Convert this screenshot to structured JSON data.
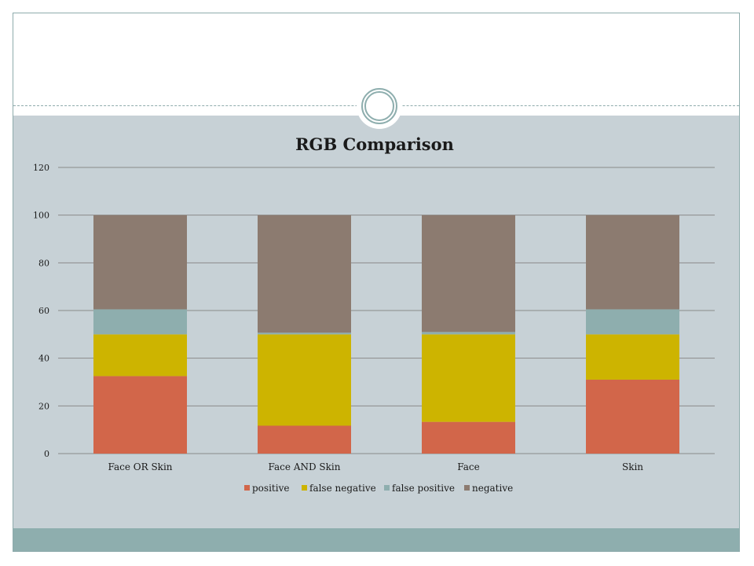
{
  "colors": {
    "positive": "#d2664a",
    "false_negative": "#cdb400",
    "false_positive": "#8eaeae",
    "negative": "#8c7b70",
    "grid": "#8a8a8a",
    "content_background": "#c7d1d6",
    "footer_band": "#8eaeae"
  },
  "chart_data": {
    "type": "bar",
    "stacked": true,
    "title": "RGB Comparison",
    "xlabel": "",
    "ylabel": "",
    "ylim": [
      0,
      120
    ],
    "yticks": [
      0,
      20,
      40,
      60,
      80,
      100,
      120
    ],
    "grid": true,
    "legend_placement": "bottom",
    "categories": [
      "Face OR Skin",
      "Face AND Skin",
      "Face",
      "Skin"
    ],
    "series": [
      {
        "name": "positive",
        "values": [
          32.5,
          11.7,
          13.3,
          31
        ]
      },
      {
        "name": "false negative",
        "values": [
          17.5,
          38.3,
          36.7,
          19
        ]
      },
      {
        "name": "false positive",
        "values": [
          10.5,
          0.7,
          1,
          10.5
        ]
      },
      {
        "name": "negative",
        "values": [
          39.5,
          49.3,
          49,
          39.5
        ]
      }
    ]
  }
}
